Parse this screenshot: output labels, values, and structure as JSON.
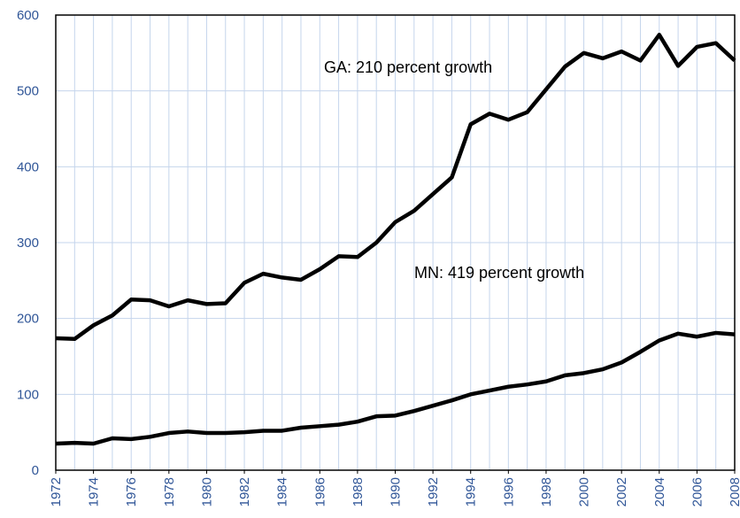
{
  "chart_data": {
    "type": "line",
    "x": [
      1972,
      1973,
      1974,
      1975,
      1976,
      1977,
      1978,
      1979,
      1980,
      1981,
      1982,
      1983,
      1984,
      1985,
      1986,
      1987,
      1988,
      1989,
      1990,
      1991,
      1992,
      1993,
      1994,
      1995,
      1996,
      1997,
      1998,
      1999,
      2000,
      2001,
      2002,
      2003,
      2004,
      2005,
      2006,
      2007,
      2008
    ],
    "series": [
      {
        "color": "#000000",
        "values": [
          174,
          173,
          191,
          204,
          225,
          224,
          216,
          224,
          219,
          220,
          247,
          259,
          254,
          251,
          265,
          282,
          281,
          300,
          327,
          342,
          364,
          386,
          456,
          470,
          462,
          472,
          502,
          532,
          550,
          543,
          552,
          540,
          574,
          533,
          558,
          563,
          540
        ]
      },
      {
        "color": "#000000",
        "values": [
          35,
          36,
          35,
          42,
          41,
          44,
          49,
          51,
          49,
          49,
          50,
          52,
          52,
          56,
          58,
          60,
          64,
          71,
          72,
          78,
          85,
          92,
          100,
          105,
          110,
          113,
          117,
          125,
          128,
          133,
          142,
          156,
          171,
          180,
          176,
          181,
          179
        ]
      }
    ],
    "annotations": [
      "GA: 210 percent growth",
      "MN: 419 percent growth"
    ],
    "xlim": [
      1972,
      2008
    ],
    "xticks": [
      1972,
      1974,
      1976,
      1978,
      1980,
      1982,
      1984,
      1986,
      1988,
      1990,
      1992,
      1994,
      1996,
      1998,
      2000,
      2002,
      2004,
      2006,
      2008
    ],
    "ylim": [
      0,
      600
    ],
    "yticks": [
      0,
      100,
      200,
      300,
      400,
      500,
      600
    ],
    "grid": true
  }
}
